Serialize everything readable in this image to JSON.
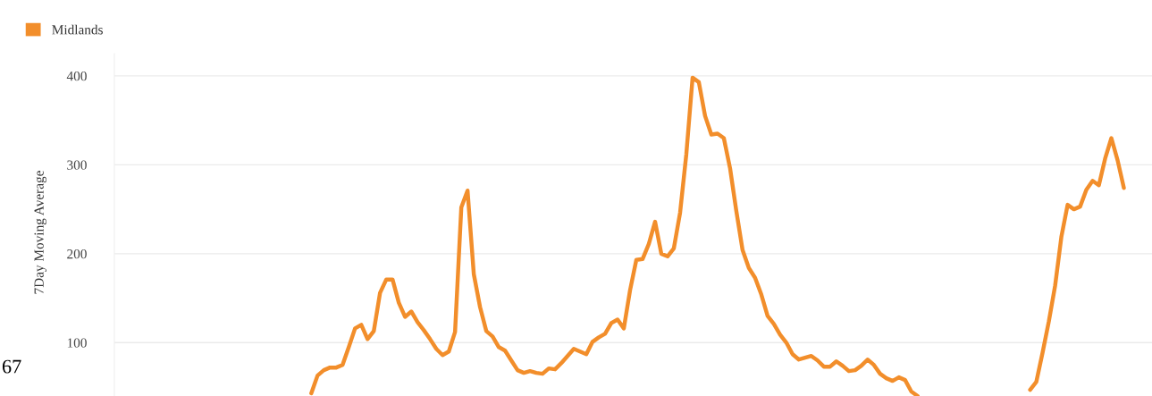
{
  "chart_data": {
    "type": "line",
    "ylabel": "7Day Moving Average",
    "annotations": [
      "67"
    ],
    "categories": [
      null,
      null,
      null,
      null,
      null,
      null,
      null,
      null,
      null,
      null,
      null,
      null,
      null,
      null,
      null,
      null,
      null,
      null,
      null,
      null,
      null,
      null,
      null,
      null,
      null,
      null,
      null,
      null,
      null,
      null,
      null,
      null,
      null,
      null,
      null,
      null,
      null,
      null,
      null,
      null,
      null,
      null,
      null,
      null,
      null,
      null,
      null,
      null,
      null,
      null,
      null,
      null,
      null,
      null,
      null,
      null,
      null,
      null,
      null,
      null,
      null,
      null,
      null,
      null,
      null,
      null,
      null,
      null,
      null,
      null,
      null,
      null,
      null,
      null,
      null,
      null,
      null,
      null,
      null,
      null,
      null,
      null,
      null,
      null,
      null,
      null,
      null,
      null,
      null,
      null,
      null,
      null,
      null,
      null,
      null,
      null,
      null,
      null,
      null,
      null,
      null,
      null,
      null,
      null,
      null,
      null,
      null,
      null,
      null,
      null,
      null,
      null,
      null,
      null,
      null,
      null,
      null,
      null,
      null,
      null,
      null,
      null,
      null,
      null,
      null,
      null,
      null,
      null,
      null,
      null,
      null,
      null,
      null,
      null,
      null,
      null,
      null,
      null,
      null,
      null,
      null,
      null,
      null,
      null,
      null,
      null,
      null,
      null,
      null,
      null,
      null,
      null,
      null,
      null,
      null,
      null,
      null,
      null,
      null,
      null,
      null,
      null,
      null,
      null,
      null,
      null
    ],
    "series": [
      {
        "name": "Midlands",
        "color": "#f28e2b",
        "values": [
          null,
          null,
          null,
          null,
          null,
          null,
          null,
          null,
          null,
          null,
          null,
          null,
          null,
          null,
          null,
          null,
          null,
          null,
          null,
          null,
          null,
          null,
          null,
          null,
          null,
          null,
          null,
          null,
          null,
          null,
          null,
          43,
          63,
          69,
          72,
          72,
          75,
          95,
          116,
          120,
          104,
          113,
          156,
          171,
          171,
          145,
          129,
          135,
          123,
          114,
          104,
          93,
          86,
          90,
          112,
          252,
          271,
          177,
          140,
          113,
          107,
          95,
          91,
          80,
          69,
          66,
          68,
          66,
          65,
          71,
          70,
          77,
          85,
          93,
          90,
          87,
          101,
          106,
          110,
          122,
          126,
          116,
          159,
          193,
          194,
          211,
          236,
          200,
          197,
          206,
          246,
          312,
          398,
          393,
          355,
          334,
          335,
          330,
          296,
          248,
          204,
          184,
          173,
          154,
          130,
          121,
          109,
          100,
          87,
          81,
          83,
          85,
          80,
          73,
          73,
          79,
          74,
          68,
          69,
          74,
          81,
          75,
          65,
          60,
          57,
          61,
          58,
          45,
          40,
          null,
          null,
          null,
          null,
          null,
          null,
          null,
          null,
          null,
          null,
          null,
          null,
          null,
          null,
          null,
          null,
          null,
          null,
          null,
          null,
          null,
          null,
          null,
          null,
          null,
          null,
          null,
          null,
          null,
          null,
          null,
          null,
          null,
          null,
          null,
          null,
          null
        ]
      },
      {
        "color": "#f28e2b",
        "values": [
          null,
          null,
          null,
          null,
          null,
          null,
          null,
          null,
          null,
          null,
          null,
          null,
          null,
          null,
          null,
          null,
          null,
          null,
          null,
          null,
          null,
          null,
          null,
          null,
          null,
          null,
          null,
          null,
          null,
          null,
          null,
          null,
          null,
          null,
          null,
          null,
          null,
          null,
          null,
          null,
          null,
          null,
          null,
          null,
          null,
          null,
          null,
          null,
          null,
          null,
          null,
          null,
          null,
          null,
          null,
          null,
          null,
          null,
          null,
          null,
          null,
          null,
          null,
          null,
          null,
          null,
          null,
          null,
          null,
          null,
          null,
          null,
          null,
          null,
          null,
          null,
          null,
          null,
          null,
          null,
          null,
          null,
          null,
          null,
          null,
          null,
          null,
          null,
          null,
          null,
          null,
          null,
          null,
          null,
          null,
          null,
          null,
          null,
          null,
          null,
          null,
          null,
          null,
          null,
          null,
          null,
          null,
          null,
          null,
          null,
          null,
          null,
          null,
          null,
          null,
          null,
          null,
          null,
          null,
          null,
          null,
          null,
          null,
          null,
          null,
          null,
          null,
          null,
          null,
          null,
          null,
          null,
          null,
          null,
          null,
          null,
          null,
          null,
          null,
          null,
          null,
          null,
          null,
          null,
          null,
          null,
          47,
          56,
          89,
          124,
          164,
          219,
          255,
          250,
          253,
          272,
          282,
          277,
          307,
          330,
          305,
          274,
          null,
          null,
          null,
          null
        ]
      }
    ],
    "ylim": [
      40,
      425
    ],
    "yticks": [
      100,
      200,
      300,
      400
    ],
    "grid": "y",
    "legend": "top left",
    "tick_labels": "y",
    "marker": "none",
    "line_style": "solid"
  }
}
